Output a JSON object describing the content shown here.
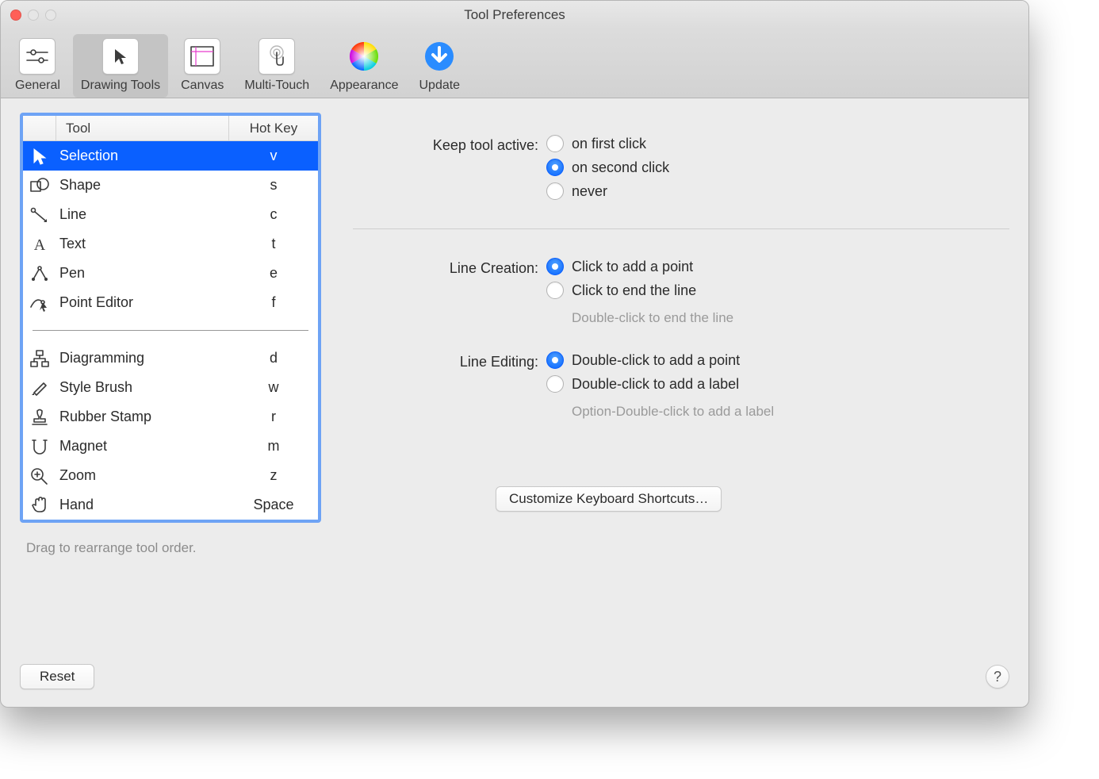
{
  "window": {
    "title": "Tool Preferences"
  },
  "toolbar": {
    "selected_index": 1,
    "items": [
      {
        "label": "General",
        "icon": "sliders"
      },
      {
        "label": "Drawing Tools",
        "icon": "cursor"
      },
      {
        "label": "Canvas",
        "icon": "canvas"
      },
      {
        "label": "Multi-Touch",
        "icon": "touch"
      },
      {
        "label": "Appearance",
        "icon": "colorwheel"
      },
      {
        "label": "Update",
        "icon": "download"
      }
    ]
  },
  "tool_table": {
    "headers": {
      "tool": "Tool",
      "hotkey": "Hot Key"
    },
    "selected_index": 0,
    "groups": [
      [
        {
          "name": "Selection",
          "key": "v",
          "icon": "cursor"
        },
        {
          "name": "Shape",
          "key": "s",
          "icon": "shape"
        },
        {
          "name": "Line",
          "key": "c",
          "icon": "line"
        },
        {
          "name": "Text",
          "key": "t",
          "icon": "text"
        },
        {
          "name": "Pen",
          "key": "e",
          "icon": "pen"
        },
        {
          "name": "Point Editor",
          "key": "f",
          "icon": "pointeditor"
        }
      ],
      [
        {
          "name": "Diagramming",
          "key": "d",
          "icon": "diagram"
        },
        {
          "name": "Style Brush",
          "key": "w",
          "icon": "brush"
        },
        {
          "name": "Rubber Stamp",
          "key": "r",
          "icon": "stamp"
        },
        {
          "name": "Magnet",
          "key": "m",
          "icon": "magnet"
        },
        {
          "name": "Zoom",
          "key": "z",
          "icon": "zoom"
        },
        {
          "name": "Hand",
          "key": "Space",
          "icon": "hand"
        }
      ]
    ]
  },
  "hint": "Drag to rearrange tool order.",
  "settings": {
    "keep_active": {
      "label": "Keep tool active:",
      "options": [
        "on first click",
        "on second click",
        "never"
      ],
      "selected": 1
    },
    "line_creation": {
      "label": "Line Creation:",
      "options": [
        "Click to add a point",
        "Click to end the line"
      ],
      "selected": 0,
      "hint": "Double-click to end the line"
    },
    "line_editing": {
      "label": "Line Editing:",
      "options": [
        "Double-click to add a point",
        "Double-click to add a label"
      ],
      "selected": 0,
      "hint": "Option-Double-click to add a label"
    }
  },
  "buttons": {
    "customize": "Customize Keyboard Shortcuts…",
    "reset": "Reset",
    "help": "?"
  },
  "colors": {
    "selection_bg": "#0a60ff",
    "focus_ring": "#6ea3f5",
    "window_bg": "#ececec",
    "text": "#2b2b2b",
    "hint": "#8c8c8c"
  }
}
